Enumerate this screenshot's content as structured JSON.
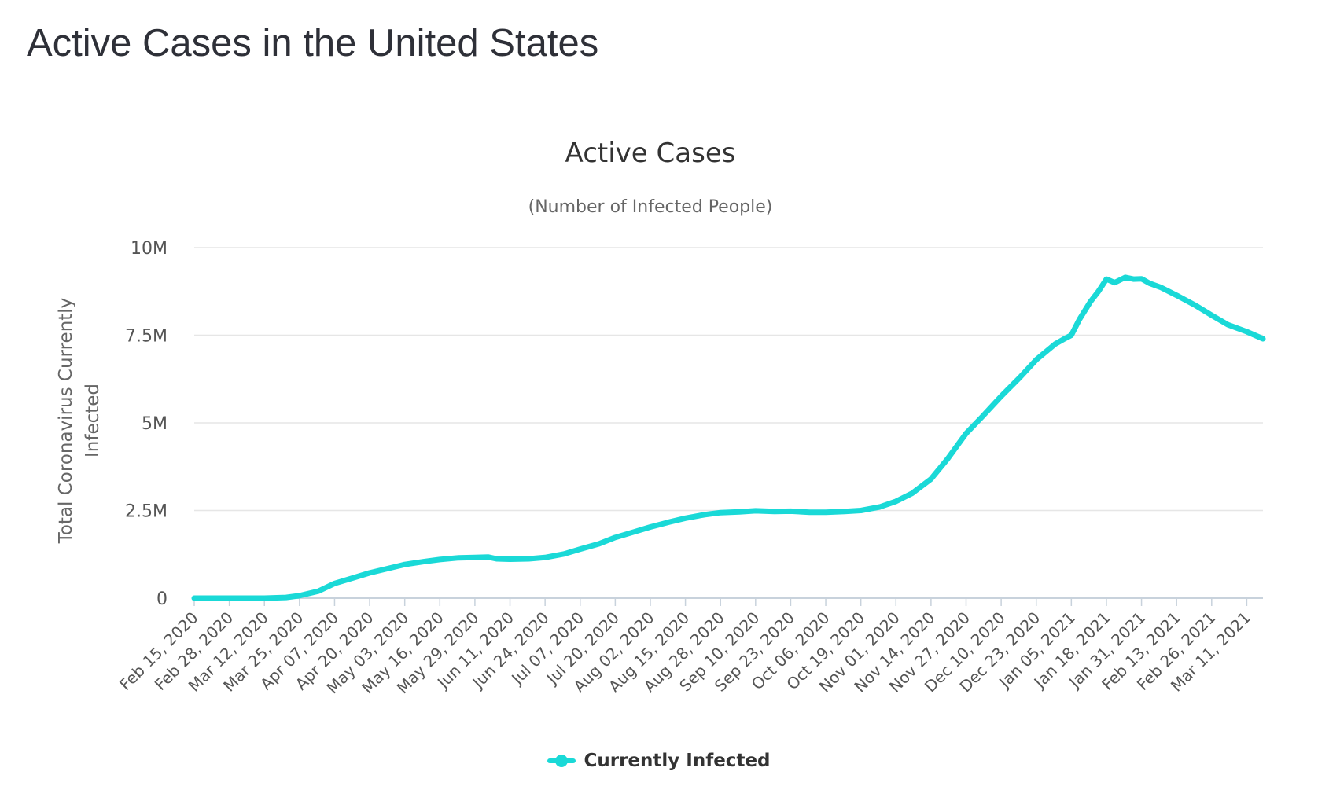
{
  "page": {
    "heading": "Active Cases in the United States"
  },
  "colors": {
    "series": "#1ad9d7",
    "grid": "#e6e6e6",
    "axis_line": "#c8d2dc",
    "text": "#555555",
    "title": "#333333",
    "heading": "#2e3038"
  },
  "chart_data": {
    "type": "line",
    "title": "Active Cases",
    "subtitle": "(Number of Infected People)",
    "ylabel": "Total Coronavirus Currently Infected",
    "xlabel": "",
    "ylim": [
      0,
      10000000
    ],
    "y_ticks": [
      0,
      2500000,
      5000000,
      7500000,
      10000000
    ],
    "y_tick_labels": [
      "0",
      "2.5M",
      "5M",
      "7.5M",
      "10M"
    ],
    "x_start": "Feb 15, 2020",
    "x_end": "Mar 17, 2021",
    "x_tick_labels": [
      "Feb 15, 2020",
      "Feb 28, 2020",
      "Mar 12, 2020",
      "Mar 25, 2020",
      "Apr 07, 2020",
      "Apr 20, 2020",
      "May 03, 2020",
      "May 16, 2020",
      "May 29, 2020",
      "Jun 11, 2020",
      "Jun 24, 2020",
      "Jul 07, 2020",
      "Jul 20, 2020",
      "Aug 02, 2020",
      "Aug 15, 2020",
      "Aug 28, 2020",
      "Sep 10, 2020",
      "Sep 23, 2020",
      "Oct 06, 2020",
      "Oct 19, 2020",
      "Nov 01, 2020",
      "Nov 14, 2020",
      "Nov 27, 2020",
      "Dec 10, 2020",
      "Dec 23, 2020",
      "Jan 05, 2021",
      "Jan 18, 2021",
      "Jan 31, 2021",
      "Feb 13, 2021",
      "Feb 26, 2021",
      "Mar 11, 2021"
    ],
    "grid": true,
    "legend_position": "bottom-center",
    "series": [
      {
        "name": "Currently Infected",
        "x": [
          "Feb 15, 2020",
          "Feb 28, 2020",
          "Mar 12, 2020",
          "Mar 20, 2020",
          "Mar 25, 2020",
          "Apr 01, 2020",
          "Apr 07, 2020",
          "Apr 14, 2020",
          "Apr 20, 2020",
          "Apr 27, 2020",
          "May 03, 2020",
          "May 10, 2020",
          "May 16, 2020",
          "May 23, 2020",
          "May 29, 2020",
          "Jun 03, 2020",
          "Jun 06, 2020",
          "Jun 11, 2020",
          "Jun 18, 2020",
          "Jun 24, 2020",
          "Jul 01, 2020",
          "Jul 07, 2020",
          "Jul 14, 2020",
          "Jul 20, 2020",
          "Jul 27, 2020",
          "Aug 02, 2020",
          "Aug 09, 2020",
          "Aug 15, 2020",
          "Aug 22, 2020",
          "Aug 28, 2020",
          "Sep 04, 2020",
          "Sep 10, 2020",
          "Sep 17, 2020",
          "Sep 23, 2020",
          "Sep 30, 2020",
          "Oct 06, 2020",
          "Oct 13, 2020",
          "Oct 19, 2020",
          "Oct 26, 2020",
          "Nov 01, 2020",
          "Nov 07, 2020",
          "Nov 14, 2020",
          "Nov 20, 2020",
          "Nov 27, 2020",
          "Dec 03, 2020",
          "Dec 10, 2020",
          "Dec 17, 2020",
          "Dec 23, 2020",
          "Dec 30, 2020",
          "Jan 02, 2021",
          "Jan 05, 2021",
          "Jan 08, 2021",
          "Jan 12, 2021",
          "Jan 15, 2021",
          "Jan 18, 2021",
          "Jan 21, 2021",
          "Jan 25, 2021",
          "Jan 28, 2021",
          "Jan 31, 2021",
          "Feb 03, 2021",
          "Feb 07, 2021",
          "Feb 13, 2021",
          "Feb 20, 2021",
          "Feb 26, 2021",
          "Mar 04, 2021",
          "Mar 11, 2021",
          "Mar 17, 2021"
        ],
        "y": [
          0,
          0,
          0,
          20000,
          70000,
          200000,
          420000,
          580000,
          720000,
          850000,
          960000,
          1040000,
          1100000,
          1150000,
          1160000,
          1170000,
          1120000,
          1110000,
          1120000,
          1160000,
          1260000,
          1400000,
          1550000,
          1730000,
          1890000,
          2030000,
          2170000,
          2280000,
          2380000,
          2440000,
          2460000,
          2490000,
          2470000,
          2480000,
          2450000,
          2450000,
          2470000,
          2500000,
          2600000,
          2760000,
          2990000,
          3400000,
          3960000,
          4700000,
          5180000,
          5760000,
          6300000,
          6800000,
          7250000,
          7380000,
          7500000,
          7950000,
          8450000,
          8750000,
          9100000,
          9000000,
          9150000,
          9100000,
          9110000,
          8980000,
          8870000,
          8640000,
          8350000,
          8070000,
          7800000,
          7600000,
          7400000
        ]
      }
    ]
  }
}
